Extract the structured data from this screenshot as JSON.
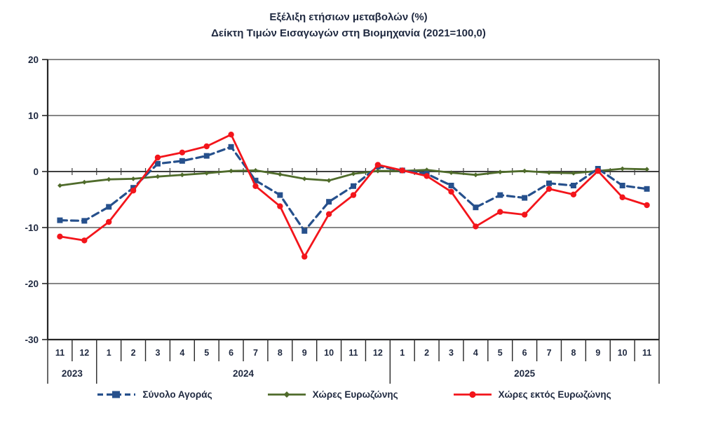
{
  "title": {
    "line1": "Εξέλιξη ετήσιων μεταβολών (%)",
    "line2": "Δείκτη Τιμών Εισαγωγών στη Βιομηχανία (2021=100,0)"
  },
  "colors": {
    "text": "#1f2940",
    "grid": "#3f3f3f",
    "axis": "#262626",
    "total_market": "#26508c",
    "eurozone": "#4f6b2b",
    "non_eurozone": "#f3151b"
  },
  "chart_data": {
    "type": "line",
    "title": "Εξέλιξη ετήσιων μεταβολών (%) Δείκτη Τιμών Εισαγωγών στη Βιομηχανία (2021=100,0)",
    "ylim": [
      -30,
      20
    ],
    "yticks": [
      20,
      10,
      0,
      -10,
      -20,
      -30
    ],
    "grid": true,
    "legend_position": "bottom",
    "x_months": [
      "11",
      "12",
      "1",
      "2",
      "3",
      "4",
      "5",
      "6",
      "7",
      "8",
      "9",
      "10",
      "11",
      "12",
      "1",
      "2",
      "3",
      "4",
      "5",
      "6",
      "7",
      "8",
      "9",
      "10",
      "11"
    ],
    "year_groups": [
      {
        "label": "2023",
        "span": 2
      },
      {
        "label": "2024",
        "span": 12
      },
      {
        "label": "2025",
        "span": 11
      }
    ],
    "series": [
      {
        "name": "Σύνολο Αγοράς",
        "color": "#26508c",
        "style": "dashed",
        "marker": "square",
        "values": [
          -8.7,
          -8.8,
          -6.3,
          -2.9,
          1.4,
          1.9,
          2.8,
          4.4,
          -1.6,
          -4.2,
          -10.6,
          -5.4,
          -2.6,
          0.9,
          0.2,
          -0.4,
          -2.5,
          -6.4,
          -4.2,
          -4.7,
          -2.1,
          -2.5,
          0.5,
          -2.5,
          -3.1
        ]
      },
      {
        "name": "Χώρες Ευρωζώνης",
        "color": "#4f6b2b",
        "style": "solid",
        "marker": "diamond",
        "values": [
          -2.5,
          -1.9,
          -1.4,
          -1.3,
          -0.9,
          -0.6,
          -0.3,
          0.1,
          0.2,
          -0.5,
          -1.3,
          -1.6,
          -0.4,
          0.1,
          0.1,
          0.3,
          -0.2,
          -0.6,
          -0.1,
          0.1,
          -0.2,
          -0.3,
          0.1,
          0.5,
          0.4
        ]
      },
      {
        "name": "Χώρες εκτός Ευρωζώνης",
        "color": "#f3151b",
        "style": "solid",
        "marker": "circle",
        "values": [
          -11.6,
          -12.3,
          -9.0,
          -3.4,
          2.5,
          3.4,
          4.5,
          6.6,
          -2.6,
          -6.2,
          -15.2,
          -7.6,
          -4.2,
          1.2,
          0.2,
          -0.8,
          -3.6,
          -9.8,
          -7.2,
          -7.7,
          -3.1,
          -4.1,
          0.1,
          -4.6,
          -6.0
        ]
      }
    ]
  },
  "legend": {
    "items": [
      {
        "label": "Σύνολο Αγοράς"
      },
      {
        "label": "Χώρες Ευρωζώνης"
      },
      {
        "label": "Χώρες εκτός Ευρωζώνης"
      }
    ]
  }
}
